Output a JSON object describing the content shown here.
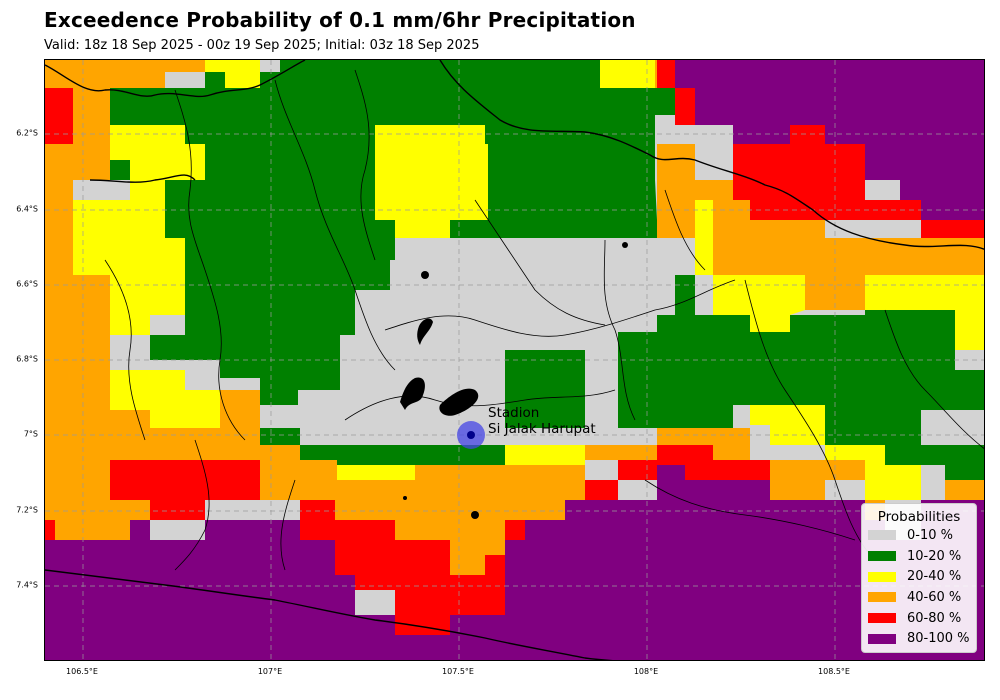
{
  "title": "Exceedence Probability of 0.1 mm/6hr Precipitation",
  "subtitle": "Valid: 18z 18 Sep 2025 - 00z 19 Sep 2025; Initial: 03z 18 Sep 2025",
  "y_ticks": [
    "6.2°S",
    "6.4°S",
    "6.6°S",
    "6.8°S",
    "7°S",
    "7.2°S",
    "7.4°S"
  ],
  "x_ticks": [
    "106.5°E",
    "107°E",
    "107.5°E",
    "108°E",
    "108.5°E"
  ],
  "station": {
    "line1": "Stadion",
    "line2": "Si Jalak Harupat",
    "lon": 107.53,
    "lat": -7.0
  },
  "legend": {
    "title": "Probabilities",
    "items": [
      {
        "label": "0-10 %",
        "color": "#d3d3d3"
      },
      {
        "label": "10-20 %",
        "color": "#008000"
      },
      {
        "label": "20-40 %",
        "color": "#ffff00"
      },
      {
        "label": "40-60 %",
        "color": "#ffa500"
      },
      {
        "label": "60-80 %",
        "color": "#ff0000"
      },
      {
        "label": "80-100 %",
        "color": "#800080"
      }
    ]
  }
}
